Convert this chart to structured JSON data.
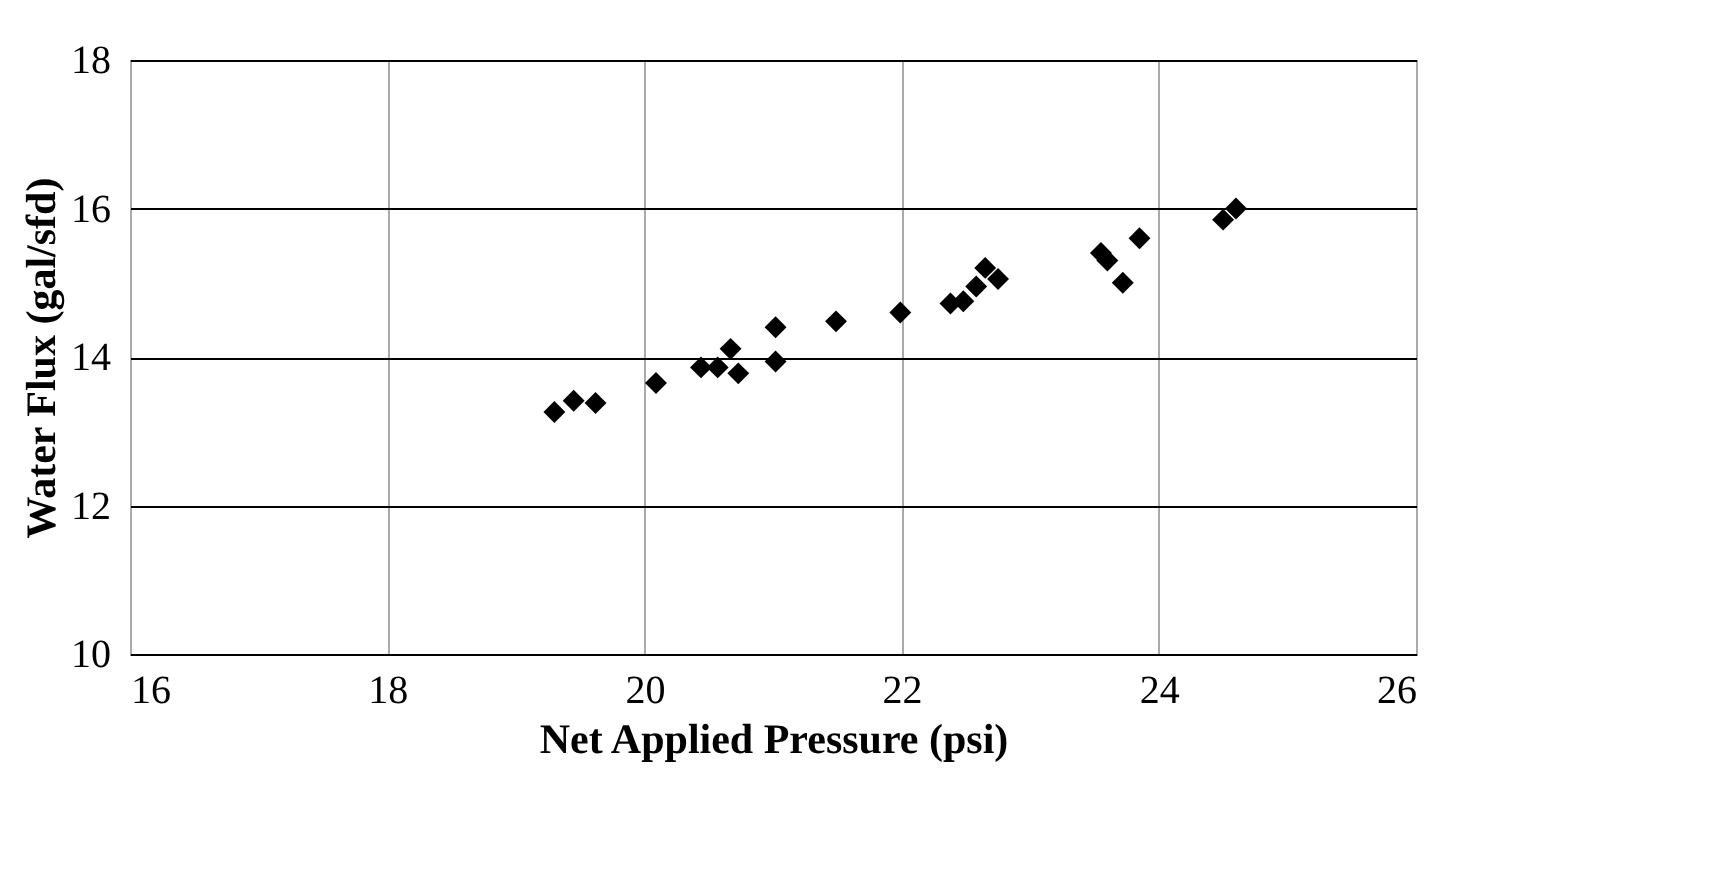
{
  "chart_data": {
    "type": "scatter",
    "xlabel": "Net Applied Pressure (psi)",
    "ylabel": "Water Flux (gal/sfd)",
    "x": [
      19.3,
      19.45,
      19.62,
      20.09,
      20.44,
      20.57,
      20.67,
      20.73,
      21.02,
      21.02,
      21.49,
      21.99,
      22.38,
      22.48,
      22.58,
      22.65,
      22.75,
      23.55,
      23.6,
      23.72,
      23.85,
      24.5,
      24.6
    ],
    "series": [
      {
        "color": "#000000",
        "values": [
          13.26,
          13.41,
          13.38,
          13.65,
          13.86,
          13.86,
          14.11,
          13.78,
          14.4,
          13.94,
          14.48,
          14.6,
          14.72,
          14.75,
          14.95,
          15.2,
          15.05,
          15.4,
          15.3,
          15.0,
          15.6,
          15.85,
          16.0
        ]
      }
    ],
    "xlim": [
      16,
      26
    ],
    "xticks": [
      16,
      18,
      20,
      22,
      24,
      26
    ],
    "ylim": [
      10,
      18
    ],
    "yticks": [
      10,
      12,
      14,
      16,
      18
    ],
    "grid": true,
    "marker": "diamond"
  }
}
